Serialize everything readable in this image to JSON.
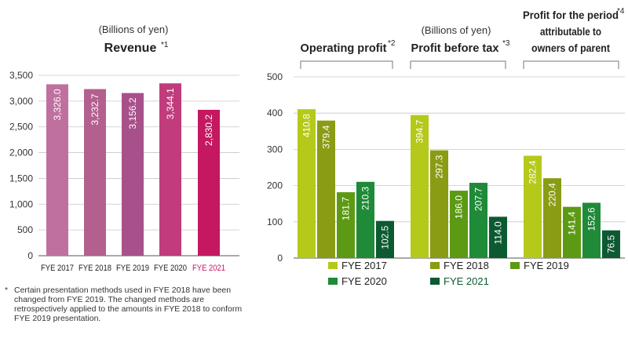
{
  "colors": {
    "fye2017_rev": "#c0709f",
    "fye2018_rev": "#b4608f",
    "fye2019_rev": "#a8508a",
    "fye2020_rev": "#c03c7c",
    "fye2021_rev": "#c41860",
    "fye2021_label_rev": "#c41860",
    "g2017": "#b5c91a",
    "g2018": "#8a9c14",
    "g2019": "#5c9a14",
    "g2020": "#1f8a38",
    "g2021": "#0d5a32",
    "g2021_label": "#0d5a32"
  },
  "chart_data": [
    {
      "type": "bar",
      "unit_label": "(Billions of yen)",
      "title": "Revenue",
      "title_note": "*1",
      "categories": [
        "FYE 2017",
        "FYE 2018",
        "FYE 2019",
        "FYE 2020",
        "FYE 2021"
      ],
      "values": [
        3326.0,
        3232.7,
        3156.2,
        3344.1,
        2830.2
      ],
      "value_labels": [
        "3,326.0",
        "3,232.7",
        "3,156.2",
        "3,344.1",
        "2,830.2"
      ],
      "ylim": [
        0,
        3500
      ],
      "yticks": [
        "0",
        "500",
        "1,000",
        "1,500",
        "2,000",
        "2,500",
        "3,000",
        "3,500"
      ],
      "grid": true
    },
    {
      "type": "bar",
      "unit_label": "(Billions of yen)",
      "groups": [
        {
          "title": "Operating profit",
          "note": "*2",
          "values": [
            410.8,
            379.4,
            181.7,
            210.3,
            102.5
          ],
          "value_labels": [
            "410.8",
            "379.4",
            "181.7",
            "210.3",
            "102.5"
          ]
        },
        {
          "title": "Profit before tax",
          "note": "*3",
          "values": [
            394.7,
            297.3,
            186.0,
            207.7,
            114.0
          ],
          "value_labels": [
            "394.7",
            "297.3",
            "186.0",
            "207.7",
            "114.0"
          ]
        },
        {
          "title_lines": [
            "Profit for the period",
            "attributable to",
            "owners of parent"
          ],
          "note": "*4",
          "values": [
            282.4,
            220.4,
            141.4,
            152.6,
            76.5
          ],
          "value_labels": [
            "282.4",
            "220.4",
            "141.4",
            "152.6",
            "76.5"
          ]
        }
      ],
      "series": [
        {
          "name": "FYE 2017"
        },
        {
          "name": "FYE 2018"
        },
        {
          "name": "FYE 2019"
        },
        {
          "name": "FYE 2020"
        },
        {
          "name": "FYE 2021"
        }
      ],
      "ylim": [
        0,
        500
      ],
      "yticks": [
        "0",
        "100",
        "200",
        "300",
        "400",
        "500"
      ],
      "grid": true,
      "legend_placement": "bottom"
    }
  ],
  "footnote": {
    "marker": "*",
    "text": "Certain presentation methods used in FYE 2018 have been changed from FYE 2019. The changed methods are retrospectively applied to the amounts in FYE 2018 to conform FYE 2019 presentation."
  }
}
